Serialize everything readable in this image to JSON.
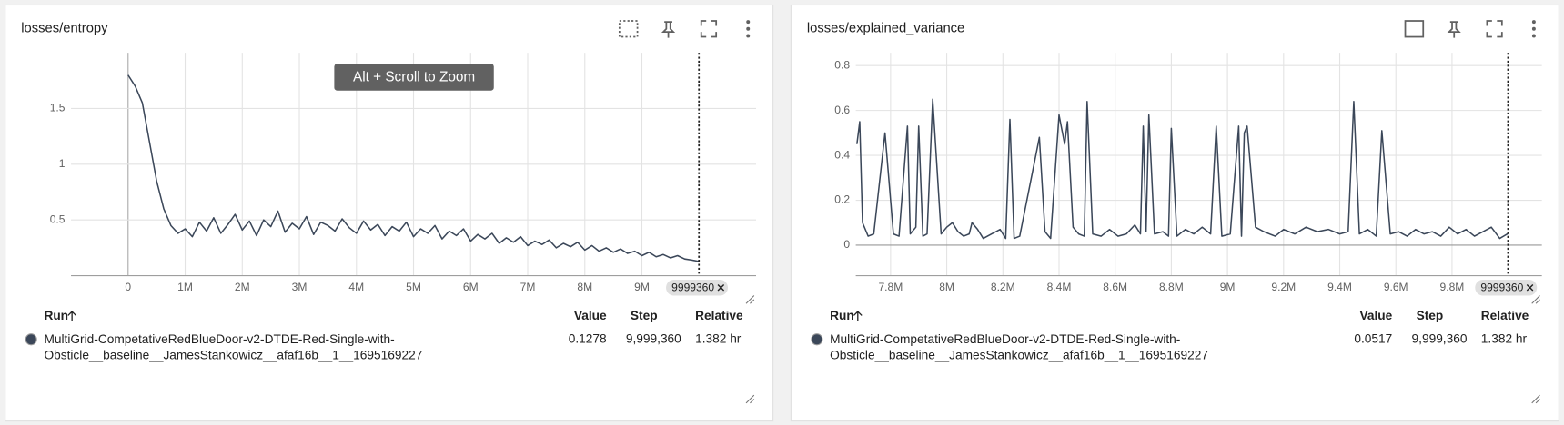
{
  "chart_data": [
    {
      "type": "line",
      "title": "losses/entropy",
      "color": "#3b4759",
      "grid": true,
      "xlim": [
        -1000000,
        11000000
      ],
      "ylim": [
        0,
        2
      ],
      "xticks": [
        {
          "value": 0,
          "label": "0"
        },
        {
          "value": 1000000,
          "label": "1M"
        },
        {
          "value": 2000000,
          "label": "2M"
        },
        {
          "value": 3000000,
          "label": "3M"
        },
        {
          "value": 4000000,
          "label": "4M"
        },
        {
          "value": 5000000,
          "label": "5M"
        },
        {
          "value": 6000000,
          "label": "6M"
        },
        {
          "value": 7000000,
          "label": "7M"
        },
        {
          "value": 8000000,
          "label": "8M"
        },
        {
          "value": 9000000,
          "label": "9M"
        }
      ],
      "yticks": [
        0.5,
        1,
        1.5
      ],
      "cursor": 9999360,
      "x": [
        0,
        125000,
        250000,
        375000,
        500000,
        625000,
        750000,
        875000,
        1000000,
        1125000,
        1250000,
        1375000,
        1500000,
        1625000,
        1750000,
        1875000,
        2000000,
        2125000,
        2250000,
        2375000,
        2500000,
        2625000,
        2750000,
        2875000,
        3000000,
        3125000,
        3250000,
        3375000,
        3500000,
        3625000,
        3750000,
        3875000,
        4000000,
        4125000,
        4250000,
        4375000,
        4500000,
        4625000,
        4750000,
        4875000,
        5000000,
        5125000,
        5250000,
        5375000,
        5500000,
        5625000,
        5750000,
        5875000,
        6000000,
        6125000,
        6250000,
        6375000,
        6500000,
        6625000,
        6750000,
        6875000,
        7000000,
        7125000,
        7250000,
        7375000,
        7500000,
        7625000,
        7750000,
        7875000,
        8000000,
        8125000,
        8250000,
        8375000,
        8500000,
        8625000,
        8750000,
        8875000,
        9000000,
        9125000,
        9250000,
        9375000,
        9500000,
        9625000,
        9750000,
        9875000,
        9999360
      ],
      "values": [
        1.8,
        1.7,
        1.55,
        1.2,
        0.85,
        0.6,
        0.45,
        0.38,
        0.42,
        0.35,
        0.48,
        0.4,
        0.52,
        0.38,
        0.46,
        0.55,
        0.41,
        0.49,
        0.36,
        0.5,
        0.44,
        0.58,
        0.39,
        0.47,
        0.42,
        0.53,
        0.37,
        0.48,
        0.45,
        0.4,
        0.51,
        0.43,
        0.38,
        0.49,
        0.41,
        0.46,
        0.36,
        0.44,
        0.4,
        0.48,
        0.35,
        0.42,
        0.38,
        0.45,
        0.33,
        0.4,
        0.36,
        0.42,
        0.31,
        0.37,
        0.33,
        0.38,
        0.29,
        0.34,
        0.3,
        0.35,
        0.27,
        0.31,
        0.28,
        0.32,
        0.25,
        0.29,
        0.26,
        0.3,
        0.23,
        0.27,
        0.22,
        0.25,
        0.21,
        0.24,
        0.2,
        0.22,
        0.18,
        0.21,
        0.17,
        0.19,
        0.16,
        0.18,
        0.15,
        0.14,
        0.1278
      ]
    },
    {
      "type": "line",
      "title": "losses/explained_variance",
      "color": "#3b4759",
      "grid": true,
      "xlim": [
        7676000,
        10120000
      ],
      "ylim": [
        -0.136,
        0.857
      ],
      "xticks": [
        {
          "value": 7800000,
          "label": "7.8M"
        },
        {
          "value": 8000000,
          "label": "8M"
        },
        {
          "value": 8200000,
          "label": "8.2M"
        },
        {
          "value": 8400000,
          "label": "8.4M"
        },
        {
          "value": 8600000,
          "label": "8.6M"
        },
        {
          "value": 8800000,
          "label": "8.8M"
        },
        {
          "value": 9000000,
          "label": "9M"
        },
        {
          "value": 9200000,
          "label": "9.2M"
        },
        {
          "value": 9400000,
          "label": "9.4M"
        },
        {
          "value": 9600000,
          "label": "9.6M"
        },
        {
          "value": 9800000,
          "label": "9.8M"
        }
      ],
      "yticks": [
        0,
        0.2,
        0.4,
        0.6,
        0.8
      ],
      "cursor": 9999360,
      "x": [
        7680000,
        7690000,
        7700000,
        7720000,
        7740000,
        7780000,
        7810000,
        7830000,
        7860000,
        7870000,
        7890000,
        7900000,
        7915000,
        7930000,
        7950000,
        7980000,
        8000000,
        8020000,
        8040000,
        8060000,
        8080000,
        8090000,
        8110000,
        8130000,
        8160000,
        8190000,
        8210000,
        8225000,
        8240000,
        8260000,
        8330000,
        8350000,
        8370000,
        8400000,
        8420000,
        8430000,
        8450000,
        8470000,
        8490000,
        8500000,
        8520000,
        8550000,
        8580000,
        8610000,
        8640000,
        8670000,
        8690000,
        8700000,
        8710000,
        8720000,
        8740000,
        8770000,
        8790000,
        8800000,
        8820000,
        8850000,
        8880000,
        8910000,
        8940000,
        8960000,
        8980000,
        9010000,
        9040000,
        9050000,
        9060000,
        9070000,
        9100000,
        9130000,
        9170000,
        9200000,
        9240000,
        9280000,
        9320000,
        9360000,
        9400000,
        9430000,
        9450000,
        9470000,
        9500000,
        9530000,
        9550000,
        9580000,
        9610000,
        9640000,
        9670000,
        9700000,
        9730000,
        9760000,
        9790000,
        9820000,
        9850000,
        9880000,
        9910000,
        9940000,
        9970000,
        9999360
      ],
      "values": [
        0.45,
        0.55,
        0.1,
        0.04,
        0.05,
        0.5,
        0.05,
        0.04,
        0.53,
        0.05,
        0.08,
        0.53,
        0.04,
        0.05,
        0.65,
        0.05,
        0.08,
        0.1,
        0.06,
        0.04,
        0.05,
        0.1,
        0.07,
        0.03,
        0.05,
        0.07,
        0.03,
        0.56,
        0.03,
        0.04,
        0.48,
        0.06,
        0.03,
        0.58,
        0.45,
        0.55,
        0.08,
        0.05,
        0.04,
        0.64,
        0.05,
        0.04,
        0.07,
        0.04,
        0.05,
        0.09,
        0.05,
        0.53,
        0.06,
        0.58,
        0.05,
        0.06,
        0.04,
        0.52,
        0.04,
        0.07,
        0.05,
        0.08,
        0.05,
        0.53,
        0.04,
        0.05,
        0.53,
        0.04,
        0.5,
        0.53,
        0.08,
        0.06,
        0.04,
        0.07,
        0.05,
        0.08,
        0.06,
        0.07,
        0.05,
        0.06,
        0.64,
        0.05,
        0.07,
        0.04,
        0.51,
        0.05,
        0.06,
        0.04,
        0.07,
        0.05,
        0.06,
        0.04,
        0.08,
        0.05,
        0.07,
        0.04,
        0.06,
        0.08,
        0.03,
        0.0517
      ]
    }
  ],
  "panels": [
    {
      "tooltip": "Alt + Scroll to Zoom",
      "table": {
        "headers": [
          "Run",
          "Value",
          "Step",
          "Relative"
        ],
        "rows": [
          [
            "MultiGrid-CompetativeRedBlueDoor-v2-DTDE-Red-Single-with-Obsticle__baseline__JamesStankowicz__afaf16b__1__1695169227",
            "0.1278",
            "9,999,360",
            "1.382 hr"
          ]
        ]
      }
    },
    {
      "table": {
        "headers": [
          "Run",
          "Value",
          "Step",
          "Relative"
        ],
        "rows": [
          [
            "MultiGrid-CompetativeRedBlueDoor-v2-DTDE-Red-Single-with-Obsticle__baseline__JamesStankowicz__afaf16b__1__1695169227",
            "0.0517",
            "9,999,360",
            "1.382 hr"
          ]
        ]
      }
    }
  ]
}
